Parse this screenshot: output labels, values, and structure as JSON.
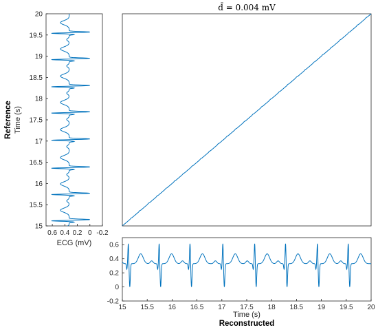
{
  "chart_data": [
    {
      "panel": "warping-path",
      "type": "line",
      "title": "d̄ = 0.004 mV",
      "xlim": [
        15,
        20
      ],
      "ylim": [
        15,
        20
      ],
      "x": [
        15,
        20
      ],
      "y": [
        15,
        20
      ],
      "color": "#0072bd"
    },
    {
      "panel": "reference-ecg",
      "type": "line",
      "orientation": "vertical",
      "xlabel": "ECG (mV)",
      "ylabel_top": "Reference",
      "ylabel_bottom": "Time (s)",
      "xlim": [
        0.7,
        -0.2
      ],
      "ylim": [
        15,
        20
      ],
      "x_ticks": [
        "0.6",
        "0.4",
        "0.2",
        "0",
        "-0.2"
      ],
      "y_ticks": [
        "15",
        "15.5",
        "16",
        "16.5",
        "17",
        "17.5",
        "18",
        "18.5",
        "19",
        "19.5",
        "20"
      ],
      "r_peak_times": [
        15.12,
        15.74,
        16.36,
        17.02,
        17.66,
        18.28,
        18.92,
        19.54
      ],
      "r_peak_value": 0.62,
      "baseline_value": 0.33,
      "t_wave_value": 0.47,
      "color": "#0072bd"
    },
    {
      "panel": "reconstructed-ecg",
      "type": "line",
      "xlabel_top": "Time (s)",
      "xlabel_bottom": "Reconstructed",
      "xlim": [
        15,
        20
      ],
      "ylim": [
        -0.2,
        0.7
      ],
      "x_ticks": [
        "15",
        "15.5",
        "16",
        "16.5",
        "17",
        "17.5",
        "18",
        "18.5",
        "19",
        "19.5",
        "20"
      ],
      "y_ticks": [
        "-0.2",
        "0",
        "0.2",
        "0.4",
        "0.6"
      ],
      "r_peak_times": [
        15.12,
        15.74,
        16.36,
        17.02,
        17.66,
        18.28,
        18.92,
        19.54
      ],
      "r_peak_value": 0.62,
      "baseline_value": 0.33,
      "t_wave_value": 0.47,
      "color": "#0072bd"
    }
  ]
}
